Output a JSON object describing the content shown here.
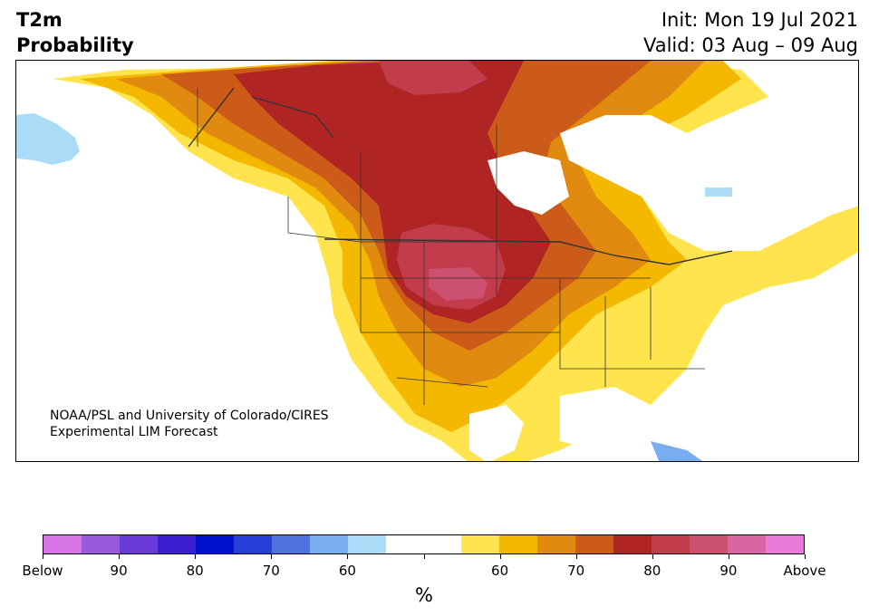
{
  "header": {
    "title_line1": "T2m",
    "title_line2": "Probability",
    "init": "Init: Mon 19 Jul 2021",
    "valid": "Valid: 03 Aug – 09 Aug"
  },
  "map": {
    "region": "North America",
    "credit_line1": "NOAA/PSL and University of Colorado/CIRES",
    "credit_line2": "Experimental LIM Forecast"
  },
  "colorbar": {
    "unit": "%",
    "colors": [
      "#d774e6",
      "#9b59dd",
      "#6a3ad8",
      "#3a1fcf",
      "#0010cf",
      "#2a3fd9",
      "#4e72e0",
      "#78aef0",
      "#aadcf8",
      "#ffffff",
      "#ffffff",
      "#ffe44d",
      "#f5b800",
      "#e08a10",
      "#cc5a18",
      "#b02424",
      "#c23c4c",
      "#cc5070",
      "#d966a0",
      "#e97ad8"
    ],
    "labels": [
      "Below",
      "90",
      "80",
      "70",
      "60",
      "60",
      "70",
      "80",
      "90",
      "Above"
    ],
    "colors_legend": {
      "above_high": "#cc5070",
      "above_80": "#b02424",
      "above_75": "#cc5a18",
      "above_70": "#e08a10",
      "above_65": "#f5b800",
      "above_60": "#ffe44d",
      "below_60": "#aadcf8",
      "below_70": "#78aef0",
      "neutral": "#ffffff"
    }
  }
}
